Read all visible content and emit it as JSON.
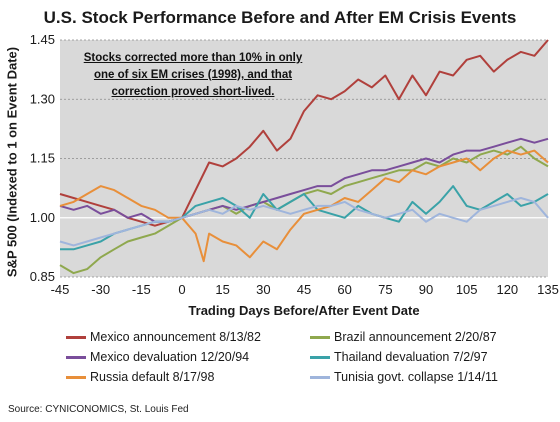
{
  "chart_data": {
    "type": "line",
    "title": "U.S. Stock Performance Before and After EM Crisis Events",
    "xlabel": "Trading Days Before/After Event Date",
    "ylabel": "S&P 500 (Indexed to 1 on Event Date)",
    "annotation": "Stocks corrected more than 10% in only one of six EM crises (1998), and that correction proved short-lived.",
    "source": "Source: CYNICONOMICS, St. Louis Fed",
    "xlim": [
      -45,
      135
    ],
    "ylim": [
      0.85,
      1.45
    ],
    "x_ticks": [
      "-45",
      "-30",
      "-15",
      "0",
      "15",
      "30",
      "45",
      "60",
      "75",
      "90",
      "105",
      "120",
      "135"
    ],
    "y_ticks": [
      "0.85",
      "1.00",
      "1.15",
      "1.30",
      "1.45"
    ],
    "grid": "horizontal dotted",
    "legend_position": "bottom",
    "series": [
      {
        "name": "Mexico announcement 8/13/82",
        "color": "#b0403c",
        "x": [
          -45,
          -40,
          -35,
          -30,
          -25,
          -20,
          -15,
          -10,
          -5,
          0,
          5,
          10,
          15,
          20,
          25,
          30,
          35,
          40,
          45,
          50,
          55,
          60,
          65,
          70,
          75,
          80,
          85,
          90,
          95,
          100,
          105,
          110,
          115,
          120,
          125,
          130,
          135
        ],
        "y": [
          1.06,
          1.05,
          1.04,
          1.03,
          1.02,
          1.0,
          0.99,
          0.98,
          0.99,
          1.0,
          1.07,
          1.14,
          1.13,
          1.15,
          1.18,
          1.22,
          1.17,
          1.2,
          1.27,
          1.31,
          1.3,
          1.32,
          1.35,
          1.33,
          1.36,
          1.3,
          1.36,
          1.31,
          1.37,
          1.36,
          1.4,
          1.41,
          1.37,
          1.4,
          1.42,
          1.41,
          1.45
        ]
      },
      {
        "name": "Brazil announcement 2/20/87",
        "color": "#8fa84e",
        "x": [
          -45,
          -40,
          -35,
          -30,
          -25,
          -20,
          -15,
          -10,
          -5,
          0,
          5,
          10,
          15,
          20,
          25,
          30,
          35,
          40,
          45,
          50,
          55,
          60,
          65,
          70,
          75,
          80,
          85,
          90,
          95,
          100,
          105,
          110,
          115,
          120,
          125,
          130,
          135
        ],
        "y": [
          0.88,
          0.86,
          0.87,
          0.9,
          0.92,
          0.94,
          0.95,
          0.96,
          0.98,
          1.0,
          1.01,
          1.02,
          1.03,
          1.01,
          1.03,
          1.04,
          1.02,
          1.04,
          1.06,
          1.07,
          1.06,
          1.08,
          1.09,
          1.1,
          1.11,
          1.12,
          1.12,
          1.14,
          1.13,
          1.15,
          1.14,
          1.16,
          1.17,
          1.16,
          1.18,
          1.15,
          1.13
        ]
      },
      {
        "name": "Mexico devaluation 12/20/94",
        "color": "#7a4e9b",
        "x": [
          -45,
          -40,
          -35,
          -30,
          -25,
          -20,
          -15,
          -10,
          -5,
          0,
          5,
          10,
          15,
          20,
          25,
          30,
          35,
          40,
          45,
          50,
          55,
          60,
          65,
          70,
          75,
          80,
          85,
          90,
          95,
          100,
          105,
          110,
          115,
          120,
          125,
          130,
          135
        ],
        "y": [
          1.03,
          1.02,
          1.03,
          1.01,
          1.02,
          1.0,
          1.01,
          0.99,
          0.99,
          1.0,
          1.01,
          1.02,
          1.03,
          1.02,
          1.03,
          1.04,
          1.05,
          1.06,
          1.07,
          1.08,
          1.08,
          1.1,
          1.11,
          1.12,
          1.12,
          1.13,
          1.14,
          1.15,
          1.14,
          1.16,
          1.17,
          1.17,
          1.18,
          1.19,
          1.2,
          1.19,
          1.2
        ]
      },
      {
        "name": "Thailand devaluation 7/2/97",
        "color": "#3aa2a8",
        "x": [
          -45,
          -40,
          -35,
          -30,
          -25,
          -20,
          -15,
          -10,
          -5,
          0,
          5,
          10,
          15,
          20,
          25,
          30,
          35,
          40,
          45,
          50,
          55,
          60,
          65,
          70,
          75,
          80,
          85,
          90,
          95,
          100,
          105,
          110,
          115,
          120,
          125,
          130,
          135
        ],
        "y": [
          0.92,
          0.92,
          0.93,
          0.94,
          0.96,
          0.97,
          0.98,
          0.99,
          0.99,
          1.0,
          1.03,
          1.04,
          1.05,
          1.03,
          1.0,
          1.06,
          1.02,
          1.04,
          1.06,
          1.02,
          1.01,
          1.0,
          1.03,
          1.01,
          1.0,
          0.99,
          1.04,
          1.01,
          1.04,
          1.08,
          1.03,
          1.02,
          1.04,
          1.06,
          1.03,
          1.04,
          1.06
        ]
      },
      {
        "name": "Russia default 8/17/98",
        "color": "#e88f3a",
        "x": [
          -45,
          -40,
          -35,
          -30,
          -25,
          -20,
          -15,
          -10,
          -5,
          0,
          5,
          8,
          10,
          15,
          20,
          25,
          30,
          35,
          40,
          45,
          50,
          55,
          60,
          65,
          70,
          75,
          80,
          85,
          90,
          95,
          100,
          105,
          110,
          115,
          120,
          125,
          130,
          135
        ],
        "y": [
          1.03,
          1.04,
          1.06,
          1.08,
          1.07,
          1.05,
          1.03,
          1.02,
          1.0,
          1.0,
          0.96,
          0.89,
          0.96,
          0.94,
          0.93,
          0.9,
          0.94,
          0.92,
          0.97,
          1.01,
          1.02,
          1.03,
          1.05,
          1.04,
          1.07,
          1.1,
          1.09,
          1.12,
          1.11,
          1.13,
          1.14,
          1.15,
          1.12,
          1.15,
          1.17,
          1.16,
          1.17,
          1.14
        ]
      },
      {
        "name": "Tunisia govt. collapse 1/14/11",
        "color": "#9fb5dc",
        "x": [
          -45,
          -40,
          -35,
          -30,
          -25,
          -20,
          -15,
          -10,
          -5,
          0,
          5,
          10,
          15,
          20,
          25,
          30,
          35,
          40,
          45,
          50,
          55,
          60,
          65,
          70,
          75,
          80,
          85,
          90,
          95,
          100,
          105,
          110,
          115,
          120,
          125,
          130,
          135
        ],
        "y": [
          0.94,
          0.93,
          0.94,
          0.95,
          0.96,
          0.97,
          0.98,
          0.99,
          0.99,
          1.0,
          1.01,
          1.02,
          1.01,
          1.03,
          1.02,
          1.03,
          1.02,
          1.01,
          1.02,
          1.03,
          1.03,
          1.04,
          1.02,
          1.01,
          1.0,
          1.01,
          1.02,
          0.99,
          1.01,
          1.0,
          0.99,
          1.02,
          1.03,
          1.04,
          1.05,
          1.04,
          1.0
        ]
      }
    ]
  }
}
